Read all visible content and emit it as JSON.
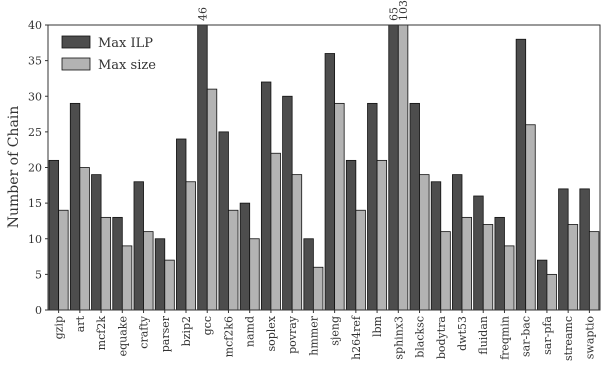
{
  "chart_data": {
    "type": "bar",
    "ylabel": "Number of Chain",
    "categories": [
      "gzip",
      "art",
      "mcf2k",
      "equake",
      "crafty",
      "parser",
      "bzip2",
      "gcc",
      "mcf2k6",
      "namd",
      "soplex",
      "povray",
      "hmmer",
      "sjeng",
      "h264ref",
      "lbm",
      "sphinx3",
      "blacksc",
      "bodytra",
      "dwt53",
      "fluidan",
      "freqmin",
      "sar-bac",
      "sar-pfa",
      "streamc",
      "swaptio"
    ],
    "series": [
      {
        "name": "Max ILP",
        "color": "#4d4d4d",
        "values": [
          21,
          29,
          19,
          13,
          18,
          10,
          24,
          46,
          25,
          15,
          32,
          30,
          10,
          36,
          21,
          29,
          65,
          29,
          18,
          19,
          16,
          13,
          38,
          7,
          17,
          17
        ],
        "value_labels": [
          null,
          null,
          null,
          null,
          null,
          null,
          null,
          "46",
          null,
          null,
          null,
          null,
          null,
          null,
          null,
          null,
          "65",
          null,
          null,
          null,
          null,
          null,
          null,
          null,
          null,
          null
        ]
      },
      {
        "name": "Max size",
        "color": "#b3b3b3",
        "values": [
          14,
          20,
          13,
          9,
          11,
          7,
          18,
          31,
          14,
          10,
          22,
          19,
          6,
          29,
          14,
          21,
          103,
          19,
          11,
          13,
          12,
          9,
          26,
          5,
          12,
          11
        ],
        "value_labels": [
          null,
          null,
          null,
          null,
          null,
          null,
          null,
          null,
          null,
          null,
          null,
          null,
          null,
          null,
          null,
          null,
          "103",
          null,
          null,
          null,
          null,
          null,
          null,
          null,
          null,
          null
        ]
      }
    ],
    "ylim": [
      0,
      40
    ],
    "yticks": [
      0,
      5,
      10,
      15,
      20,
      25,
      30,
      35,
      40
    ],
    "legend": "upper left"
  }
}
